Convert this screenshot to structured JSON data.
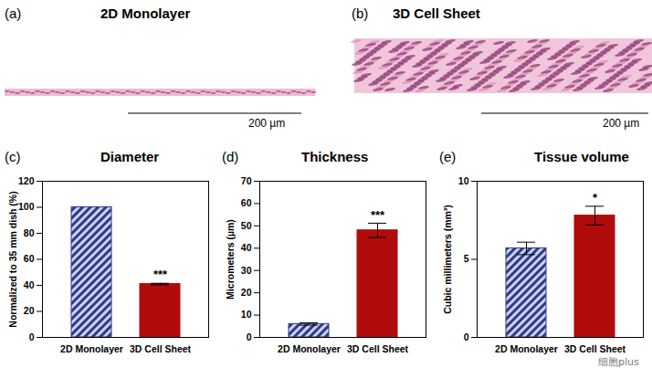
{
  "images": [
    {
      "label": "(a)",
      "title": "2D Monolayer",
      "scale_bar": "200 µm"
    },
    {
      "label": "(b)",
      "title": "3D Cell Sheet",
      "scale_bar": "200 µm"
    }
  ],
  "chart_data": [
    {
      "type": "bar",
      "label": "(c)",
      "title": "Diameter",
      "y_label": "Normalized to 35 mm dish (%)",
      "categories": [
        "2D Monolayer",
        "3D Cell Sheet"
      ],
      "values": [
        100,
        41
      ],
      "errors": [
        0,
        0.6
      ],
      "annotations": [
        null,
        "***"
      ],
      "colors": [
        "#2e3a8c",
        "#b00c0c"
      ],
      "ylim": [
        0,
        120
      ],
      "yticks": [
        0,
        20,
        40,
        60,
        80,
        100,
        120
      ]
    },
    {
      "type": "bar",
      "label": "(d)",
      "title": "Thickness",
      "y_label": "Micrometers (µm)",
      "categories": [
        "2D Monolayer",
        "3D Cell Sheet"
      ],
      "values": [
        6,
        48
      ],
      "errors": [
        0.5,
        3.2
      ],
      "annotations": [
        null,
        "***"
      ],
      "colors": [
        "#2e3a8c",
        "#b00c0c"
      ],
      "ylim": [
        0,
        70
      ],
      "yticks": [
        0,
        10,
        20,
        30,
        40,
        50,
        60,
        70
      ]
    },
    {
      "type": "bar",
      "label": "(e)",
      "title": "Tissue volume",
      "y_label": "Cubic millimeters (mm³)",
      "categories": [
        "2D Monolayer",
        "3D Cell Sheet"
      ],
      "values": [
        5.7,
        7.8
      ],
      "errors": [
        0.4,
        0.6
      ],
      "annotations": [
        null,
        "*"
      ],
      "colors": [
        "#2e3a8c",
        "#b00c0c"
      ],
      "ylim": [
        0,
        10
      ],
      "yticks": [
        0,
        5,
        10
      ]
    }
  ],
  "watermark": "细胞plus"
}
